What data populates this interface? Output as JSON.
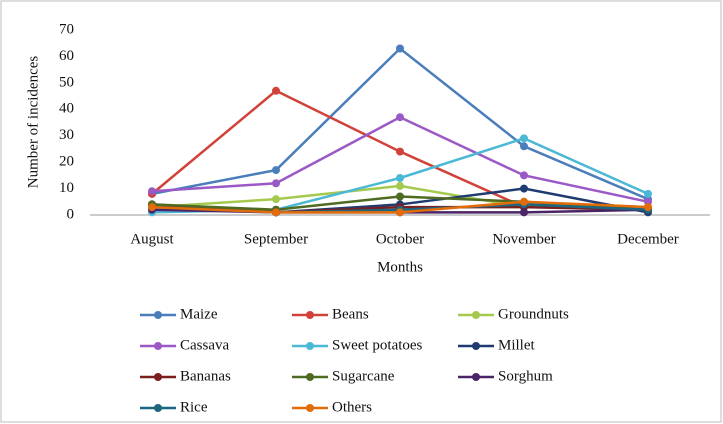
{
  "chart_data": {
    "type": "line",
    "ylabel": "Number of incidences",
    "xlabel": "Months",
    "categories": [
      "August",
      "September",
      "October",
      "November",
      "December"
    ],
    "ylim": [
      0,
      70
    ],
    "yticks": [
      0,
      10,
      20,
      30,
      40,
      50,
      60,
      70
    ],
    "series": [
      {
        "name": "Maize",
        "color": "#4a7ebb",
        "values": [
          8,
          17,
          63,
          26,
          6
        ]
      },
      {
        "name": "Beans",
        "color": "#d1423a",
        "values": [
          8,
          47,
          24,
          3,
          3
        ]
      },
      {
        "name": "Groundnuts",
        "color": "#a5c94f",
        "values": [
          3,
          6,
          11,
          3,
          3
        ]
      },
      {
        "name": "Cassava",
        "color": "#9b59c6",
        "values": [
          9,
          12,
          37,
          15,
          5
        ]
      },
      {
        "name": "Sweet potatoes",
        "color": "#4bb8d6",
        "values": [
          1,
          2,
          14,
          29,
          8
        ]
      },
      {
        "name": "Millet",
        "color": "#1f3b70",
        "values": [
          4,
          1,
          4,
          10,
          1
        ]
      },
      {
        "name": "Bananas",
        "color": "#7a1f1f",
        "values": [
          4,
          1,
          3,
          3,
          2
        ]
      },
      {
        "name": "Sugarcane",
        "color": "#4f6b22",
        "values": [
          4,
          2,
          7,
          5,
          2
        ]
      },
      {
        "name": "Sorghum",
        "color": "#4a2466",
        "values": [
          2,
          1,
          1,
          1,
          2
        ]
      },
      {
        "name": "Rice",
        "color": "#1c6680",
        "values": [
          3,
          1,
          2,
          4,
          2
        ]
      },
      {
        "name": "Others",
        "color": "#e36c0a",
        "values": [
          3,
          1,
          1,
          5,
          3
        ]
      }
    ]
  }
}
